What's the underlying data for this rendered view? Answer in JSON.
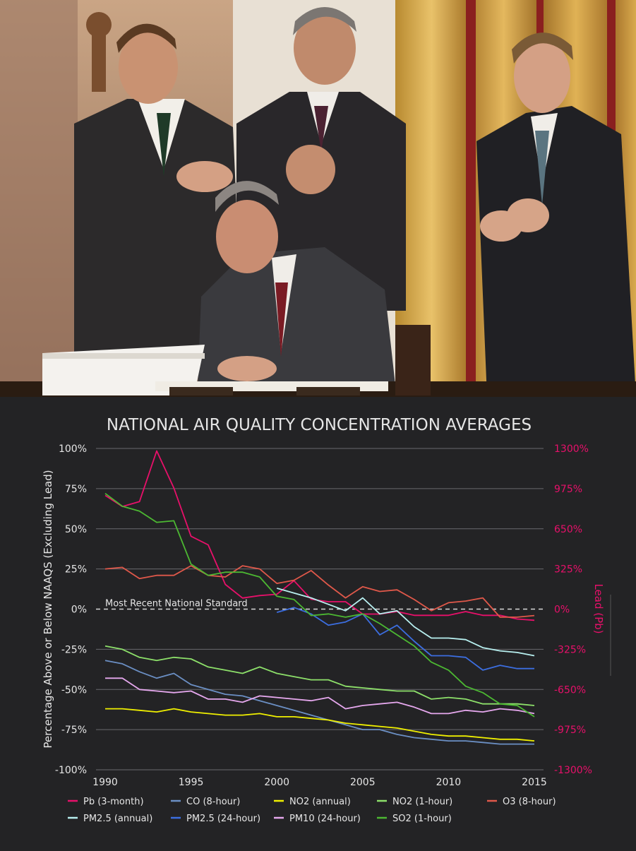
{
  "colors": {
    "background": "#232325",
    "grid": "#6a6a6e",
    "text": "#e6e6e6",
    "lead_axis": "#e8106a"
  },
  "photo": {
    "description_icon": "photo-of-bill-signing"
  },
  "chart_data": {
    "type": "line",
    "title": "NATIONAL AIR QUALITY CONCENTRATION AVERAGES",
    "ylabel": "Percentage Above or Below NAAQS (Excluding Lead)",
    "y2label": "Lead (Pb)",
    "xlim": [
      1990,
      2015
    ],
    "ylim": [
      -100,
      100
    ],
    "y2lim": [
      -1300,
      1300
    ],
    "xticks": [
      "1990",
      "1995",
      "2000",
      "2005",
      "2010",
      "2015"
    ],
    "yticks": [
      "100%",
      "75%",
      "50%",
      "25%",
      "0%",
      "-25%",
      "-50%",
      "-75%",
      "-100%"
    ],
    "y2ticks": [
      "1300%",
      "975%",
      "650%",
      "325%",
      "0%",
      "-325%",
      "-650%",
      "-975%",
      "-1300%"
    ],
    "grid": true,
    "reference_line": {
      "y": 0,
      "label": "Most Recent National Standard"
    },
    "legend_position": "bottom",
    "series": [
      {
        "name": "Pb (3-month)",
        "axis": "right",
        "color": "#e8106a",
        "x": [
          1990,
          1991,
          1992,
          1993,
          1994,
          1995,
          1996,
          1997,
          1998,
          1999,
          2000,
          2001,
          2002,
          2003,
          2004,
          2005,
          2006,
          2007,
          2008,
          2009,
          2010,
          2011,
          2012,
          2013,
          2014,
          2015
        ],
        "y": [
          920,
          830,
          870,
          1280,
          980,
          590,
          520,
          200,
          90,
          110,
          120,
          230,
          80,
          60,
          60,
          -40,
          -40,
          -20,
          -50,
          -50,
          -50,
          -20,
          -50,
          -50,
          -80,
          -90
        ]
      },
      {
        "name": "CO (8-hour)",
        "axis": "left",
        "color": "#6b8fc4",
        "x": [
          1990,
          1991,
          1992,
          1993,
          1994,
          1995,
          1996,
          1997,
          1998,
          1999,
          2000,
          2001,
          2002,
          2003,
          2004,
          2005,
          2006,
          2007,
          2008,
          2009,
          2010,
          2011,
          2012,
          2013,
          2014,
          2015
        ],
        "y": [
          -32,
          -34,
          -39,
          -43,
          -40,
          -47,
          -50,
          -53,
          -54,
          -57,
          -60,
          -63,
          -66,
          -69,
          -72,
          -75,
          -75,
          -78,
          -80,
          -81,
          -82,
          -82,
          -83,
          -84,
          -84,
          -84
        ]
      },
      {
        "name": "NO2 (annual)",
        "axis": "left",
        "color": "#f0f000",
        "x": [
          1990,
          1991,
          1992,
          1993,
          1994,
          1995,
          1996,
          1997,
          1998,
          1999,
          2000,
          2001,
          2002,
          2003,
          2004,
          2005,
          2006,
          2007,
          2008,
          2009,
          2010,
          2011,
          2012,
          2013,
          2014,
          2015
        ],
        "y": [
          -62,
          -62,
          -63,
          -64,
          -62,
          -64,
          -65,
          -66,
          -66,
          -65,
          -67,
          -67,
          -68,
          -69,
          -71,
          -72,
          -73,
          -74,
          -76,
          -78,
          -79,
          -79,
          -80,
          -81,
          -81,
          -82
        ]
      },
      {
        "name": "NO2 (1-hour)",
        "axis": "left",
        "color": "#8de06a",
        "x": [
          1990,
          1991,
          1992,
          1993,
          1994,
          1995,
          1996,
          1997,
          1998,
          1999,
          2000,
          2001,
          2002,
          2003,
          2004,
          2005,
          2006,
          2007,
          2008,
          2009,
          2010,
          2011,
          2012,
          2013,
          2014,
          2015
        ],
        "y": [
          -23,
          -25,
          -30,
          -32,
          -30,
          -31,
          -36,
          -38,
          -40,
          -36,
          -40,
          -42,
          -44,
          -44,
          -48,
          -49,
          -50,
          -51,
          -51,
          -56,
          -55,
          -56,
          -59,
          -59,
          -59,
          -60
        ]
      },
      {
        "name": "O3 (8-hour)",
        "axis": "left",
        "color": "#e0584a",
        "x": [
          1990,
          1991,
          1992,
          1993,
          1994,
          1995,
          1996,
          1997,
          1998,
          1999,
          2000,
          2001,
          2002,
          2003,
          2004,
          2005,
          2006,
          2007,
          2008,
          2009,
          2010,
          2011,
          2012,
          2013,
          2014,
          2015
        ],
        "y": [
          25,
          26,
          19,
          21,
          21,
          27,
          21,
          20,
          27,
          25,
          16,
          18,
          24,
          15,
          7,
          14,
          11,
          12,
          6,
          -1,
          4,
          5,
          7,
          -5,
          -5,
          -4
        ]
      },
      {
        "name": "PM2.5 (annual)",
        "axis": "left",
        "color": "#b8f0f0",
        "x": [
          2000,
          2001,
          2002,
          2003,
          2004,
          2005,
          2006,
          2007,
          2008,
          2009,
          2010,
          2011,
          2012,
          2013,
          2014,
          2015
        ],
        "y": [
          13,
          10,
          7,
          3,
          -1,
          7,
          -3,
          -1,
          -11,
          -18,
          -18,
          -19,
          -24,
          -26,
          -27,
          -29
        ]
      },
      {
        "name": "PM2.5 (24-hour)",
        "axis": "left",
        "color": "#3c6ee0",
        "x": [
          2000,
          2001,
          2002,
          2003,
          2004,
          2005,
          2006,
          2007,
          2008,
          2009,
          2010,
          2011,
          2012,
          2013,
          2014,
          2015
        ],
        "y": [
          -2,
          1,
          -3,
          -10,
          -8,
          -3,
          -16,
          -10,
          -20,
          -29,
          -29,
          -30,
          -38,
          -35,
          -37,
          -37
        ]
      },
      {
        "name": "PM10 (24-hour)",
        "axis": "left",
        "color": "#e6a8ee",
        "x": [
          1990,
          1991,
          1992,
          1993,
          1994,
          1995,
          1996,
          1997,
          1998,
          1999,
          2000,
          2001,
          2002,
          2003,
          2004,
          2005,
          2006,
          2007,
          2008,
          2009,
          2010,
          2011,
          2012,
          2013,
          2014,
          2015
        ],
        "y": [
          -43,
          -43,
          -50,
          -51,
          -52,
          -51,
          -56,
          -56,
          -58,
          -54,
          -55,
          -56,
          -57,
          -55,
          -62,
          -60,
          -59,
          -58,
          -61,
          -65,
          -65,
          -63,
          -64,
          -62,
          -63,
          -65
        ]
      },
      {
        "name": "SO2 (1-hour)",
        "axis": "left",
        "color": "#4cb832",
        "x": [
          1990,
          1991,
          1992,
          1993,
          1994,
          1995,
          1996,
          1997,
          1998,
          1999,
          2000,
          2001,
          2002,
          2003,
          2004,
          2005,
          2006,
          2007,
          2008,
          2009,
          2010,
          2011,
          2012,
          2013,
          2014,
          2015
        ],
        "y": [
          72,
          64,
          61,
          54,
          55,
          28,
          21,
          23,
          23,
          20,
          8,
          6,
          -4,
          -3,
          -5,
          -3,
          -9,
          -16,
          -23,
          -33,
          -38,
          -48,
          -52,
          -59,
          -60,
          -67
        ]
      }
    ]
  }
}
